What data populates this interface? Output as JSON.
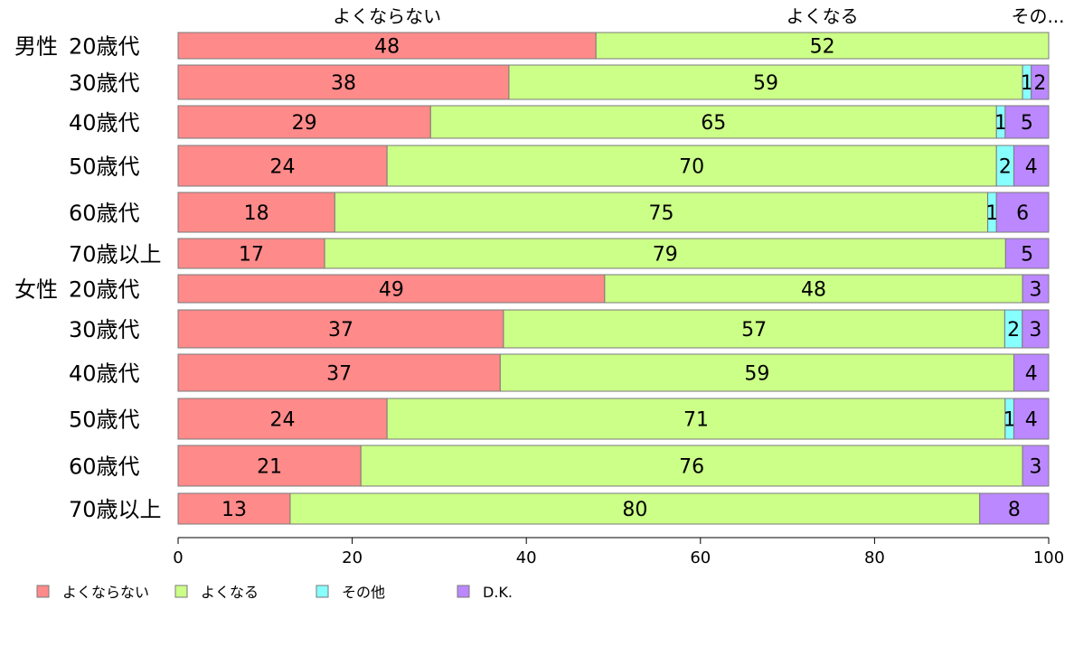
{
  "chart_data": {
    "type": "bar",
    "orientation": "horizontal",
    "stacked": true,
    "xlim": [
      0,
      100
    ],
    "x_ticks": [
      0,
      20,
      40,
      60,
      80,
      100
    ],
    "groups": [
      "男性",
      "女性"
    ],
    "categories": [
      {
        "group": "男性",
        "label": "20歳代"
      },
      {
        "group": "",
        "label": "30歳代"
      },
      {
        "group": "",
        "label": "40歳代"
      },
      {
        "group": "",
        "label": "50歳代"
      },
      {
        "group": "",
        "label": "60歳代"
      },
      {
        "group": "",
        "label": "70歳以上"
      },
      {
        "group": "女性",
        "label": "20歳代"
      },
      {
        "group": "",
        "label": "30歳代"
      },
      {
        "group": "",
        "label": "40歳代"
      },
      {
        "group": "",
        "label": "50歳代"
      },
      {
        "group": "",
        "label": "60歳代"
      },
      {
        "group": "",
        "label": "70歳以上"
      }
    ],
    "series": [
      {
        "name": "よくならない",
        "color": "#FF8A8A",
        "values": [
          48,
          38,
          29,
          24,
          18,
          17,
          49,
          37,
          37,
          24,
          21,
          13
        ]
      },
      {
        "name": "よくなる",
        "color": "#CCFF88",
        "values": [
          52,
          59,
          65,
          70,
          75,
          79,
          48,
          57,
          59,
          71,
          76,
          80
        ]
      },
      {
        "name": "その他",
        "color": "#88FFFF",
        "values": [
          0,
          1,
          1,
          2,
          1,
          0,
          0,
          2,
          0,
          1,
          0,
          0
        ]
      },
      {
        "name": "D.K.",
        "color": "#BB88FF",
        "values": [
          0,
          2,
          5,
          4,
          6,
          5,
          3,
          3,
          4,
          4,
          3,
          8
        ]
      }
    ],
    "top_labels": [
      "よくならない",
      "よくなる",
      "その..."
    ],
    "legend": {
      "placement": "bottom-left",
      "labels": [
        "よくならない",
        "よくなる",
        "その他",
        "D.K."
      ]
    },
    "grid": false
  }
}
